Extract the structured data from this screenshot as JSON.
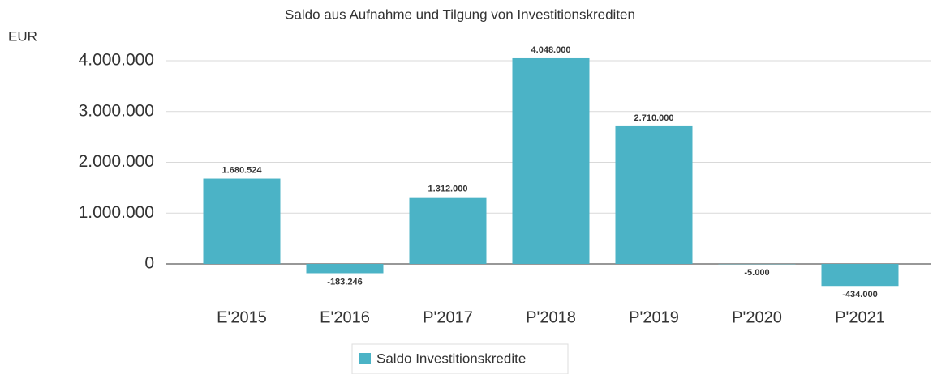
{
  "chart_data": {
    "type": "bar",
    "title": "Saldo aus Aufnahme und Tilgung von Investitionskrediten",
    "y_label": "EUR",
    "categories": [
      "E'2015",
      "E'2016",
      "P'2017",
      "P'2018",
      "P'2019",
      "P'2020",
      "P'2021"
    ],
    "series": [
      {
        "name": "Saldo Investitionskredite",
        "color": "#4bb3c6",
        "values": [
          1680524,
          -183246,
          1312000,
          4048000,
          2710000,
          -5000,
          -434000
        ],
        "value_labels": [
          "1.680.524",
          "-183.246",
          "1.312.000",
          "4.048.000",
          "2.710.000",
          "-5.000",
          "-434.000"
        ]
      }
    ],
    "ylim": [
      -1000000,
      4500000
    ],
    "yticks": [
      0,
      {
        "value": 1000000,
        "label": "1.000.000"
      },
      {
        "value": 2000000,
        "label": "2.000.000"
      },
      {
        "value": 3000000,
        "label": "3.000.000"
      },
      {
        "value": 4000000,
        "label": "4.000.000"
      }
    ],
    "grid": true,
    "legend": "bottom"
  }
}
